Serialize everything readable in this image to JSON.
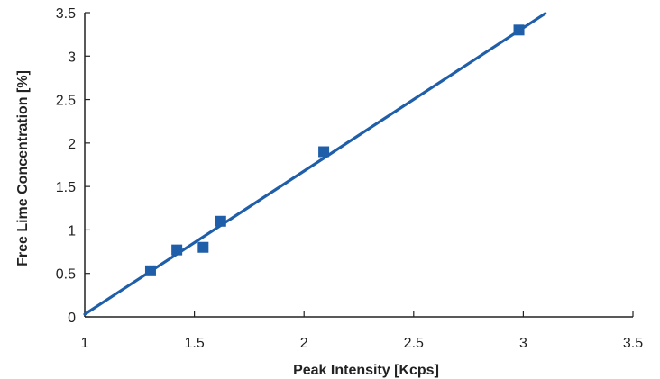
{
  "chart_data": {
    "type": "scatter",
    "title": "",
    "xlabel": "Peak Intensity  [Kcps]",
    "ylabel": "Free Lime Concentration [%]",
    "xlim": [
      1,
      3.5
    ],
    "ylim": [
      0,
      3.5
    ],
    "x_ticks": [
      1,
      1.5,
      2,
      2.5,
      3,
      3.5
    ],
    "y_ticks": [
      0,
      0.5,
      1,
      1.5,
      2,
      2.5,
      3,
      3.5
    ],
    "x_tick_labels": [
      "1",
      "1.5",
      "2",
      "2.5",
      "3",
      "3.5"
    ],
    "y_tick_labels": [
      "0",
      "0.5",
      "1",
      "1.5",
      "2",
      "2.5",
      "3",
      "3.5"
    ],
    "grid": false,
    "legend": "none",
    "series": [
      {
        "type": "scatter",
        "color": "#1f5ea8",
        "points": [
          {
            "x": 1.3,
            "y": 0.53
          },
          {
            "x": 1.42,
            "y": 0.77
          },
          {
            "x": 1.54,
            "y": 0.8
          },
          {
            "x": 1.62,
            "y": 1.1
          },
          {
            "x": 2.09,
            "y": 1.9
          },
          {
            "x": 2.98,
            "y": 3.3
          }
        ]
      },
      {
        "type": "line",
        "color": "#1f5ea8",
        "points": [
          {
            "x": 1.0,
            "y": 0.03
          },
          {
            "x": 3.1,
            "y": 3.49
          }
        ]
      }
    ]
  }
}
